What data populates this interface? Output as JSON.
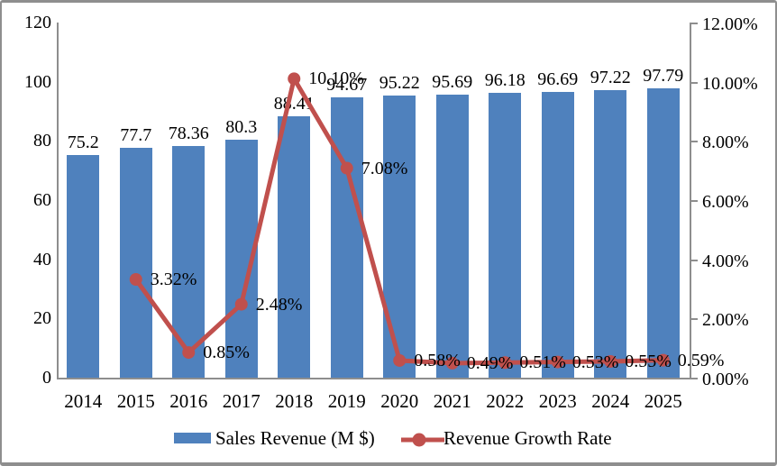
{
  "chart_data": {
    "type": "bar+line combo",
    "categories": [
      "2014",
      "2015",
      "2016",
      "2017",
      "2018",
      "2019",
      "2020",
      "2021",
      "2022",
      "2023",
      "2024",
      "2025"
    ],
    "series": [
      {
        "name": "Sales Revenue (M $)",
        "type": "bar",
        "axis": "left",
        "color": "#4F81BD",
        "values": [
          75.2,
          77.7,
          78.36,
          80.3,
          88.41,
          94.67,
          95.22,
          95.69,
          96.18,
          96.69,
          97.22,
          97.79
        ],
        "labels": [
          "75.2",
          "77.7",
          "78.36",
          "80.3",
          "88.41",
          "94.67",
          "95.22",
          "95.69",
          "96.18",
          "96.69",
          "97.22",
          "97.79"
        ]
      },
      {
        "name": "Revenue Growth Rate",
        "type": "line",
        "axis": "right",
        "color": "#C0504D",
        "values": [
          null,
          3.32,
          0.85,
          2.48,
          10.1,
          7.08,
          0.58,
          0.49,
          0.51,
          0.53,
          0.55,
          0.59
        ],
        "labels": [
          null,
          "3.32%",
          "0.85%",
          "2.48%",
          "10.10%",
          "7.08%",
          "0.58%",
          "0.49%",
          "0.51%",
          "0.53%",
          "0.55%",
          "0.59%"
        ]
      }
    ],
    "left_axis": {
      "min": 0,
      "max": 120,
      "tick_values": [
        120,
        100,
        80,
        60,
        40,
        20,
        0
      ],
      "tick_labels": [
        "120",
        "100",
        "80",
        "60",
        "40",
        "20",
        "0"
      ]
    },
    "right_axis": {
      "min": 0,
      "max": 12,
      "tick_values": [
        12,
        10,
        8,
        6,
        4,
        2,
        0
      ],
      "tick_labels": [
        "12.00%",
        "10.00%",
        "8.00%",
        "6.00%",
        "4.00%",
        "2.00%",
        "0.00%"
      ]
    },
    "gridlines": false,
    "legend_position": "bottom",
    "colors": {
      "bar": "#4F81BD",
      "line": "#C0504D",
      "axis": "#8e8e8e",
      "text": "#000000",
      "background": "#ffffff"
    }
  }
}
